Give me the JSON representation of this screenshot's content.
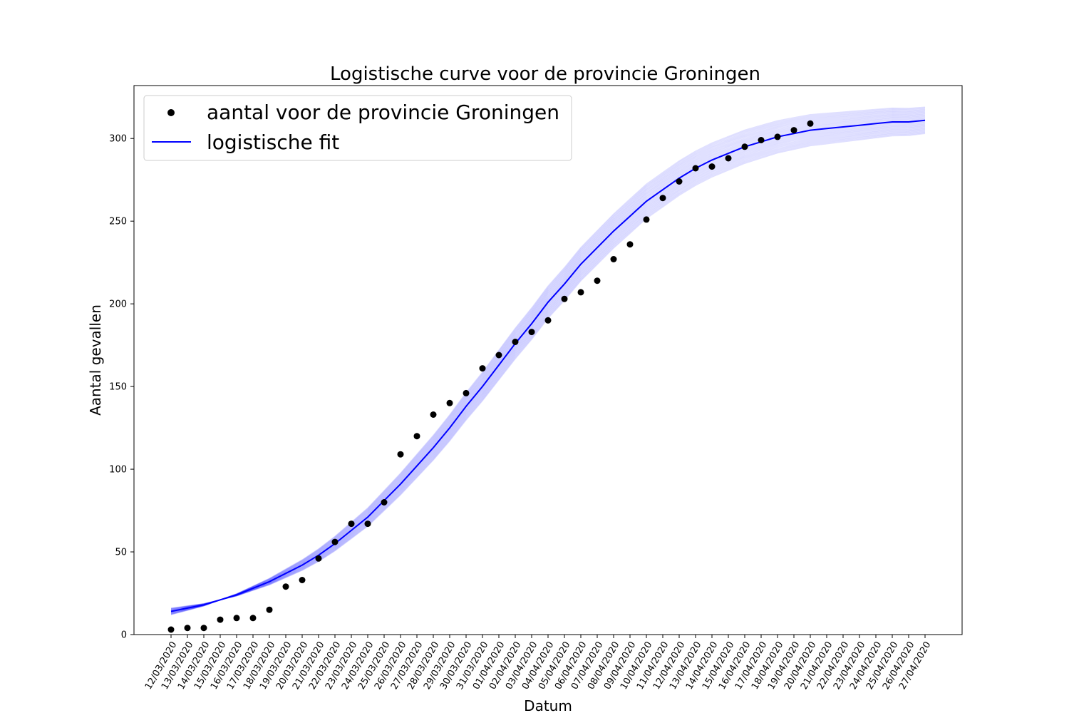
{
  "chart_data": {
    "type": "line",
    "title": "Logistische curve voor de provincie Groningen",
    "xlabel": "Datum",
    "ylabel": "Aantal gevallen",
    "ylim": [
      0,
      332
    ],
    "yticks": [
      0,
      50,
      100,
      150,
      200,
      250,
      300
    ],
    "grid": false,
    "legend_position": "top-left",
    "x": [
      "12/03/2020",
      "13/03/2020",
      "14/03/2020",
      "15/03/2020",
      "16/03/2020",
      "17/03/2020",
      "18/03/2020",
      "19/03/2020",
      "20/03/2020",
      "21/03/2020",
      "22/03/2020",
      "23/03/2020",
      "24/03/2020",
      "25/03/2020",
      "26/03/2020",
      "27/03/2020",
      "28/03/2020",
      "29/03/2020",
      "30/03/2020",
      "31/03/2020",
      "01/04/2020",
      "02/04/2020",
      "03/04/2020",
      "04/04/2020",
      "05/04/2020",
      "06/04/2020",
      "07/04/2020",
      "08/04/2020",
      "09/04/2020",
      "10/04/2020",
      "11/04/2020",
      "12/04/2020",
      "13/04/2020",
      "14/04/2020",
      "15/04/2020",
      "16/04/2020",
      "17/04/2020",
      "18/04/2020",
      "19/04/2020",
      "20/04/2020",
      "21/04/2020",
      "22/04/2020",
      "23/04/2020",
      "24/04/2020",
      "25/04/2020",
      "26/04/2020",
      "27/04/2020"
    ],
    "series": [
      {
        "name": "aantal voor de provincie Groningen",
        "kind": "scatter",
        "color": "#000000",
        "values": [
          3,
          4,
          4,
          9,
          10,
          10,
          15,
          29,
          33,
          46,
          56,
          67,
          67,
          80,
          109,
          120,
          133,
          140,
          146,
          161,
          169,
          177,
          183,
          190,
          203,
          207,
          214,
          227,
          236,
          251,
          264,
          274,
          282,
          283,
          288,
          295,
          299,
          301,
          305,
          309
        ]
      },
      {
        "name": "logistische fit",
        "kind": "line",
        "color": "#0000ff",
        "values": [
          14,
          16,
          18,
          21,
          24,
          28,
          32,
          37,
          42,
          48,
          55,
          63,
          71,
          81,
          91,
          102,
          113,
          125,
          138,
          150,
          163,
          176,
          188,
          201,
          212,
          224,
          234,
          244,
          253,
          262,
          269,
          276,
          282,
          287,
          291,
          295,
          298,
          301,
          303,
          305,
          306,
          307,
          308,
          309,
          310,
          310,
          311
        ]
      }
    ],
    "ensemble": {
      "color": "#0000ff",
      "description_count": 30
    }
  }
}
